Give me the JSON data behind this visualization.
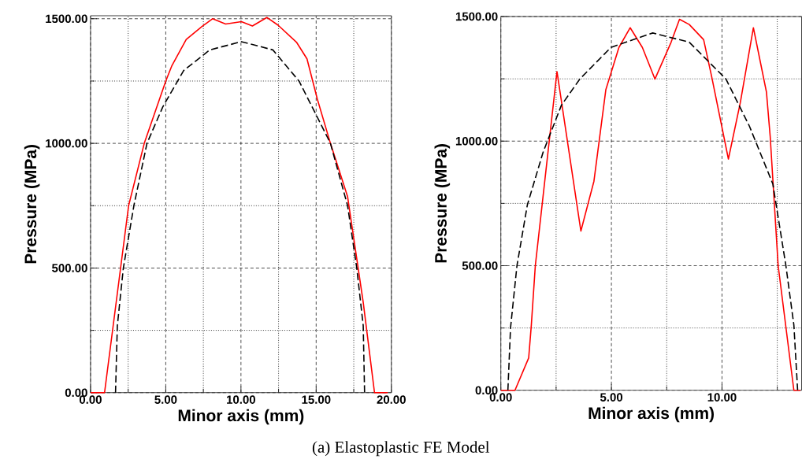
{
  "chart_data": [
    {
      "type": "line",
      "xlabel": "Minor axis (mm)",
      "ylabel": "Pressure (MPa)",
      "xlim": [
        0,
        20
      ],
      "ylim": [
        0,
        1512
      ],
      "xticks": [
        {
          "value": 0,
          "label": "0.00"
        },
        {
          "value": 2.5,
          "label": null
        },
        {
          "value": 5,
          "label": "5.00"
        },
        {
          "value": 7.5,
          "label": null
        },
        {
          "value": 10,
          "label": "10.00"
        },
        {
          "value": 12.5,
          "label": null
        },
        {
          "value": 15,
          "label": "15.00"
        },
        {
          "value": 17.5,
          "label": null
        },
        {
          "value": 20,
          "label": "20.00"
        }
      ],
      "yticks": [
        {
          "value": 0,
          "label": "0.00"
        },
        {
          "value": 250,
          "label": null
        },
        {
          "value": 500,
          "label": "500.00"
        },
        {
          "value": 750,
          "label": null
        },
        {
          "value": 1000,
          "label": "1000.00"
        },
        {
          "value": 1250,
          "label": null
        },
        {
          "value": 1500,
          "label": "1500.00"
        }
      ],
      "grid": true,
      "marker": "none",
      "annotations": [
        "(a) Elastoplastic FE Model"
      ],
      "series": [
        {
          "color": "#ff0000",
          "line_style": "solid",
          "x": [
            0,
            0.93,
            2.53,
            3.57,
            5.0,
            5.41,
            6.36,
            7.41,
            8.11,
            8.98,
            10.03,
            10.76,
            11.72,
            12.47,
            13.69,
            14.39,
            15.08,
            15.95,
            17.09,
            18.13,
            18.88,
            19.76
          ],
          "values": [
            0,
            0,
            750,
            1000,
            1250,
            1312,
            1417,
            1469,
            1500,
            1479,
            1488,
            1471,
            1505,
            1474,
            1406,
            1339,
            1177,
            1000,
            786,
            362,
            0,
            0
          ]
        },
        {
          "color": "#000000",
          "line_style": "dashed",
          "x": [
            1.66,
            1.78,
            2.18,
            2.88,
            3.75,
            4.8,
            6.19,
            7.93,
            10.03,
            12.12,
            13.86,
            15.17,
            15.95,
            17.09,
            17.7,
            18.13,
            18.22
          ],
          "values": [
            0,
            268,
            500,
            750,
            1000,
            1146,
            1292,
            1375,
            1408,
            1375,
            1250,
            1094,
            1000,
            750,
            500,
            268,
            0
          ]
        }
      ]
    },
    {
      "type": "line",
      "xlabel": "Minor axis (mm)",
      "ylabel": "Pressure (MPa)",
      "xlim": [
        0,
        13.6
      ],
      "ylim": [
        0,
        1500
      ],
      "xticks": [
        {
          "value": 0,
          "label": "0.00"
        },
        {
          "value": 2.5,
          "label": null
        },
        {
          "value": 5,
          "label": "5.00"
        },
        {
          "value": 7.5,
          "label": null
        },
        {
          "value": 10,
          "label": "10.00"
        },
        {
          "value": 12.5,
          "label": null
        }
      ],
      "yticks": [
        {
          "value": 0,
          "label": "0.00"
        },
        {
          "value": 250,
          "label": null
        },
        {
          "value": 500,
          "label": "500.00"
        },
        {
          "value": 750,
          "label": null
        },
        {
          "value": 1000,
          "label": "1000.00"
        },
        {
          "value": 1250,
          "label": null
        },
        {
          "value": 1500,
          "label": "1500.00"
        }
      ],
      "grid": true,
      "marker": "none",
      "series": [
        {
          "color": "#ff0000",
          "line_style": "solid",
          "x": [
            0,
            0.64,
            1.26,
            1.38,
            1.56,
            2.54,
            3.62,
            4.21,
            4.75,
            5.34,
            5.85,
            6.4,
            6.97,
            7.7,
            8.08,
            8.52,
            9.17,
            9.53,
            10.29,
            10.83,
            11.42,
            12.01,
            12.18,
            12.54,
            13.25,
            13.54
          ],
          "values": [
            0,
            0,
            130,
            262,
            500,
            1279,
            639,
            839,
            1207,
            1376,
            1455,
            1376,
            1249,
            1397,
            1489,
            1468,
            1407,
            1260,
            928,
            1155,
            1455,
            1197,
            1018,
            500,
            0,
            0
          ]
        },
        {
          "color": "#000000",
          "line_style": "dashed",
          "x": [
            0.32,
            0.44,
            0.73,
            1.2,
            1.91,
            2.74,
            3.57,
            4.98,
            6.87,
            8.52,
            10.18,
            11.24,
            12.3,
            12.89,
            13.25,
            13.42
          ],
          "values": [
            0,
            251,
            500,
            744,
            955,
            1144,
            1249,
            1376,
            1434,
            1397,
            1249,
            1060,
            828,
            500,
            262,
            0
          ]
        }
      ]
    }
  ]
}
